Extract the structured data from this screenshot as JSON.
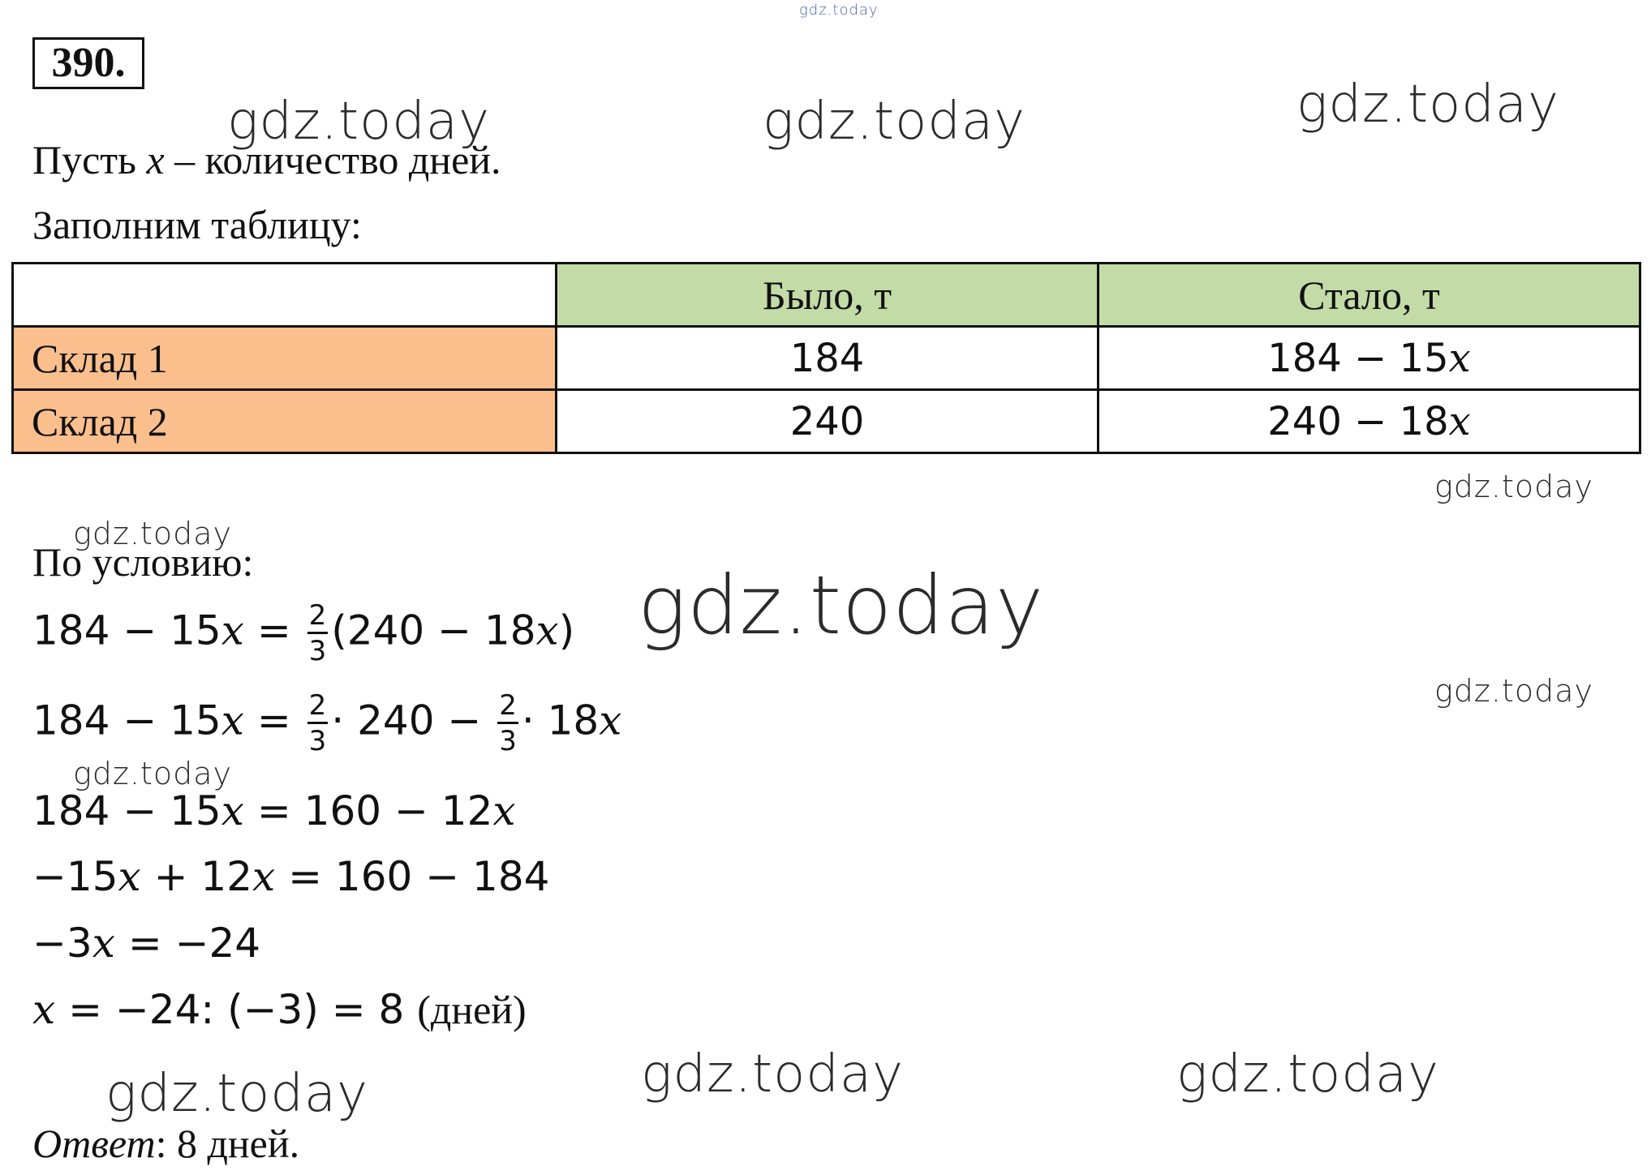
{
  "problem_number": "390.",
  "intro": {
    "let_prefix": "Пусть ",
    "let_var": "x",
    "let_suffix": " – количество дней.",
    "fill_table": "Заполним таблицу:"
  },
  "table": {
    "headers": [
      "",
      "Было, т",
      "Стало, т"
    ],
    "rows": [
      {
        "label": "Склад 1",
        "was": "184",
        "became_num": "184 − 15",
        "became_var": "x"
      },
      {
        "label": "Склад 2",
        "was": "240",
        "became_num": "240 − 18",
        "became_var": "x"
      }
    ]
  },
  "condition_label": "По условию:",
  "equations": {
    "eq1": {
      "left": "184 − 15",
      "var": "x",
      "eq": " = ",
      "frac_n": "2",
      "frac_d": "3",
      "rest_a": "(240 − 18",
      "rest_var": "x",
      "rest_b": ")"
    },
    "eq2": {
      "left": "184 − 15",
      "var": "x",
      "eq": " = ",
      "frac_n": "2",
      "frac_d": "3",
      "mid": "· 240 − ",
      "frac2_n": "2",
      "frac2_d": "3",
      "tail": "· 18",
      "tail_var": "x"
    },
    "eq3": {
      "left": "184 − 15",
      "var": "x",
      "right": " = 160 − 12",
      "right_var": "x"
    },
    "eq4": {
      "a": "−15",
      "var_a": "x",
      "b": " + 12",
      "var_b": "x",
      "right": " = 160 − 184"
    },
    "eq5": {
      "a": "−3",
      "var": "x",
      "right": " = −24"
    },
    "eq6": {
      "var": "x",
      "right": " = −24: (−3) = 8 ",
      "unit": "(дней)"
    }
  },
  "answer": {
    "label": "Ответ",
    "value": ": 8 дней."
  },
  "watermark_text": "gdz.today"
}
